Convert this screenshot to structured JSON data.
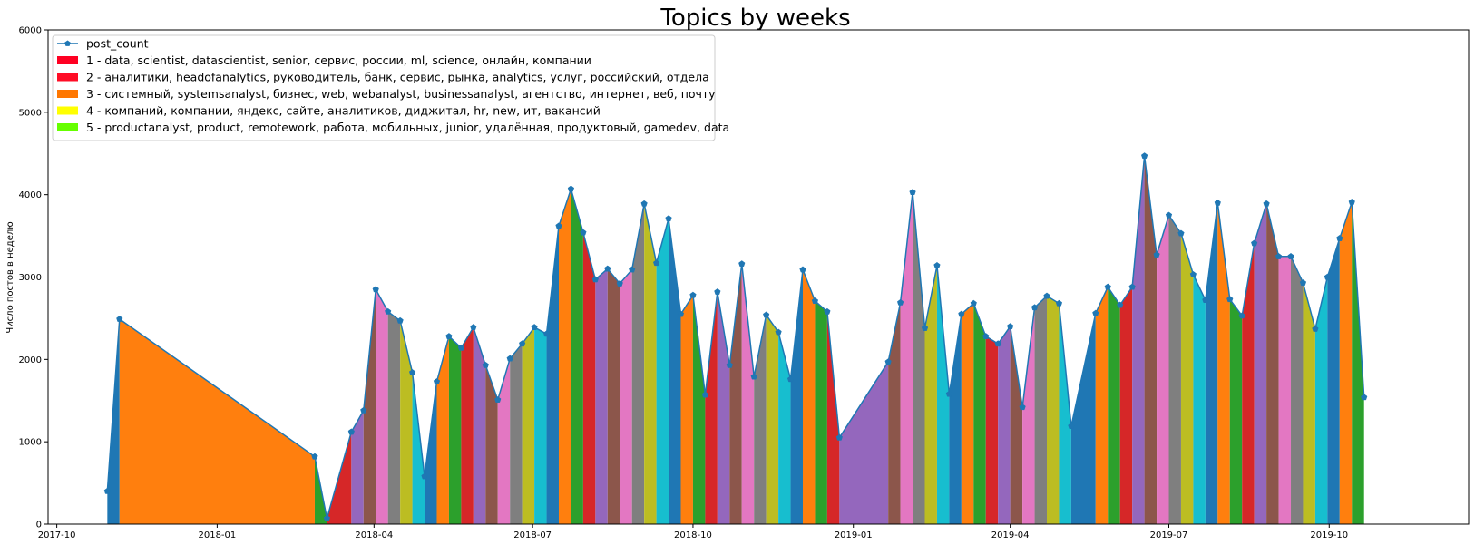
{
  "chart_data": {
    "type": "area",
    "title": "Topics by weeks",
    "xlabel": "",
    "ylabel": "Число постов в неделю",
    "x_date_range": [
      "2017-09-26",
      "2019-12-20"
    ],
    "ylim": [
      0,
      6000
    ],
    "yticks": [
      "0",
      "1000",
      "2000",
      "3000",
      "4000",
      "5000",
      "6000"
    ],
    "xticks": [
      {
        "date": "2017-10-01",
        "label": "2017-10"
      },
      {
        "date": "2018-01-01",
        "label": "2018-01"
      },
      {
        "date": "2018-04-01",
        "label": "2018-04"
      },
      {
        "date": "2018-07-01",
        "label": "2018-07"
      },
      {
        "date": "2018-10-01",
        "label": "2018-10"
      },
      {
        "date": "2019-01-01",
        "label": "2019-01"
      },
      {
        "date": "2019-04-01",
        "label": "2019-04"
      },
      {
        "date": "2019-07-01",
        "label": "2019-07"
      },
      {
        "date": "2019-10-01",
        "label": "2019-10"
      }
    ],
    "legend_placement": "upper-left",
    "legend": [
      {
        "label": "post_count",
        "kind": "line",
        "color": "#1f77b4"
      },
      {
        "label": "1 - data, scientist, datascientist, senior, сервис, россии, ml, science, онлайн, компании",
        "kind": "patch",
        "color": "#ff0022"
      },
      {
        "label": "2 - аналитики, headofanalytics, руководитель, банк, сервис, рынка, analytics, услуг, российский, отдела",
        "kind": "patch",
        "color": "#ff0d26"
      },
      {
        "label": "3 - системный, systemsanalyst, бизнес, web, webanalyst, businessanalyst, агентство, интернет, веб, почту",
        "kind": "patch",
        "color": "#ff7700"
      },
      {
        "label": "4 - компаний, компании, яндекс, сайте, аналитиков, диджитал, hr, new, ит, вакансий",
        "kind": "patch",
        "color": "#ffff00"
      },
      {
        "label": "5 - productanalyst, product, remotework, работа, мобильных, junior, удалённая, продуктовый, gamedev, data",
        "kind": "patch",
        "color": "#66ff00"
      }
    ],
    "fill_palette": [
      "#1f77b4",
      "#ff7f0e",
      "#2ca02c",
      "#d62728",
      "#9467bd",
      "#8c564b",
      "#e377c2",
      "#7f7f7f",
      "#bcbd22",
      "#17becf"
    ],
    "line_color": "#1f77b4",
    "series": [
      {
        "name": "post_count",
        "points": [
          [
            "2017-10-30",
            400
          ],
          [
            "2017-11-06",
            2490
          ],
          [
            "2018-02-26",
            820
          ],
          [
            "2018-03-05",
            70
          ],
          [
            "2018-03-19",
            1120
          ],
          [
            "2018-03-26",
            1380
          ],
          [
            "2018-04-02",
            2850
          ],
          [
            "2018-04-09",
            2580
          ],
          [
            "2018-04-16",
            2470
          ],
          [
            "2018-04-23",
            1840
          ],
          [
            "2018-04-30",
            580
          ],
          [
            "2018-05-07",
            1730
          ],
          [
            "2018-05-14",
            2280
          ],
          [
            "2018-05-21",
            2140
          ],
          [
            "2018-05-28",
            2390
          ],
          [
            "2018-06-04",
            1930
          ],
          [
            "2018-06-11",
            1510
          ],
          [
            "2018-06-18",
            2010
          ],
          [
            "2018-06-25",
            2190
          ],
          [
            "2018-07-02",
            2390
          ],
          [
            "2018-07-09",
            2310
          ],
          [
            "2018-07-16",
            3620
          ],
          [
            "2018-07-23",
            4070
          ],
          [
            "2018-07-30",
            3540
          ],
          [
            "2018-08-06",
            2970
          ],
          [
            "2018-08-13",
            3100
          ],
          [
            "2018-08-20",
            2920
          ],
          [
            "2018-08-27",
            3090
          ],
          [
            "2018-09-03",
            3890
          ],
          [
            "2018-09-10",
            3170
          ],
          [
            "2018-09-17",
            3710
          ],
          [
            "2018-09-24",
            2550
          ],
          [
            "2018-10-01",
            2780
          ],
          [
            "2018-10-08",
            1570
          ],
          [
            "2018-10-15",
            2820
          ],
          [
            "2018-10-22",
            1930
          ],
          [
            "2018-10-29",
            3160
          ],
          [
            "2018-11-05",
            1790
          ],
          [
            "2018-11-12",
            2540
          ],
          [
            "2018-11-19",
            2330
          ],
          [
            "2018-11-26",
            1760
          ],
          [
            "2018-12-03",
            3090
          ],
          [
            "2018-12-10",
            2710
          ],
          [
            "2018-12-17",
            2580
          ],
          [
            "2018-12-24",
            1050
          ],
          [
            "2019-01-21",
            1970
          ],
          [
            "2019-01-28",
            2690
          ],
          [
            "2019-02-04",
            4030
          ],
          [
            "2019-02-11",
            2380
          ],
          [
            "2019-02-18",
            3140
          ],
          [
            "2019-02-25",
            1580
          ],
          [
            "2019-03-04",
            2550
          ],
          [
            "2019-03-11",
            2680
          ],
          [
            "2019-03-18",
            2280
          ],
          [
            "2019-03-25",
            2190
          ],
          [
            "2019-04-01",
            2400
          ],
          [
            "2019-04-08",
            1420
          ],
          [
            "2019-04-15",
            2630
          ],
          [
            "2019-04-22",
            2770
          ],
          [
            "2019-04-29",
            2680
          ],
          [
            "2019-05-06",
            1190
          ],
          [
            "2019-05-20",
            2560
          ],
          [
            "2019-05-27",
            2880
          ],
          [
            "2019-06-03",
            2660
          ],
          [
            "2019-06-10",
            2880
          ],
          [
            "2019-06-17",
            4470
          ],
          [
            "2019-06-24",
            3270
          ],
          [
            "2019-07-01",
            3750
          ],
          [
            "2019-07-08",
            3530
          ],
          [
            "2019-07-15",
            3030
          ],
          [
            "2019-07-22",
            2720
          ],
          [
            "2019-07-29",
            3900
          ],
          [
            "2019-08-05",
            2730
          ],
          [
            "2019-08-12",
            2530
          ],
          [
            "2019-08-19",
            3410
          ],
          [
            "2019-08-26",
            3890
          ],
          [
            "2019-09-02",
            3250
          ],
          [
            "2019-09-09",
            3250
          ],
          [
            "2019-09-16",
            2930
          ],
          [
            "2019-09-23",
            2370
          ],
          [
            "2019-09-30",
            3000
          ],
          [
            "2019-10-07",
            3470
          ],
          [
            "2019-10-14",
            3910
          ],
          [
            "2019-10-21",
            1540
          ]
        ]
      }
    ]
  }
}
